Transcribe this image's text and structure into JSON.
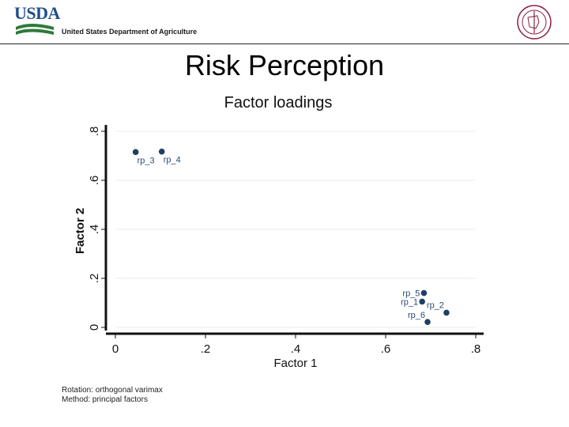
{
  "header": {
    "logo_text": "USDA",
    "department": "United States Department of Agriculture",
    "seal_icon": "university-seal-icon"
  },
  "slide": {
    "title": "Risk Perception"
  },
  "chart_data": {
    "type": "scatter",
    "title": "Factor loadings",
    "xlabel": "Factor 1",
    "ylabel": "Factor 2",
    "xlim": [
      0,
      0.8
    ],
    "ylim": [
      0,
      0.8
    ],
    "xticks": [
      0,
      0.2,
      0.4,
      0.6,
      0.8
    ],
    "xtick_labels": [
      "0",
      ".2",
      ".4",
      ".6",
      ".8"
    ],
    "yticks": [
      0,
      0.2,
      0.4,
      0.6,
      0.8
    ],
    "ytick_labels": [
      "0",
      ".2",
      ".4",
      ".6",
      ".8"
    ],
    "grid": true,
    "marker_color": "#1f3f66",
    "points": [
      {
        "label": "rp_3",
        "x": 0.045,
        "y": 0.715
      },
      {
        "label": "rp_4",
        "x": 0.103,
        "y": 0.717
      },
      {
        "label": "rp_5",
        "x": 0.685,
        "y": 0.14
      },
      {
        "label": "rp_1",
        "x": 0.681,
        "y": 0.105
      },
      {
        "label": "rp_2",
        "x": 0.735,
        "y": 0.06
      },
      {
        "label": "rp_6",
        "x": 0.693,
        "y": 0.022
      }
    ],
    "notes": [
      "Rotation: orthogonal varimax",
      "Method: principal factors"
    ]
  }
}
